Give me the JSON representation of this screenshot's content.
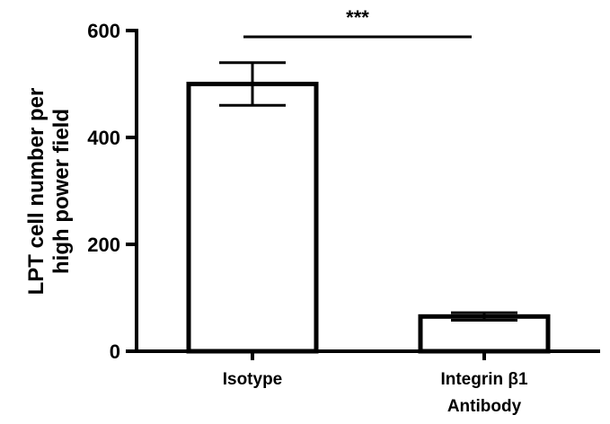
{
  "chart_data": {
    "type": "bar",
    "categories": [
      [
        "Isotype"
      ],
      [
        "Integrin β1",
        "Antibody"
      ]
    ],
    "values": [
      500,
      65
    ],
    "error": [
      40,
      7
    ],
    "ylabel": [
      "LPT cell number per",
      "high power field"
    ],
    "xlabel": "",
    "ylim": [
      0,
      600
    ],
    "yticks": [
      0,
      200,
      400,
      600
    ],
    "significance": {
      "label": "***",
      "between": [
        0,
        1
      ]
    },
    "colors": {
      "bar_fill": "#ffffff",
      "stroke": "#000000"
    }
  }
}
